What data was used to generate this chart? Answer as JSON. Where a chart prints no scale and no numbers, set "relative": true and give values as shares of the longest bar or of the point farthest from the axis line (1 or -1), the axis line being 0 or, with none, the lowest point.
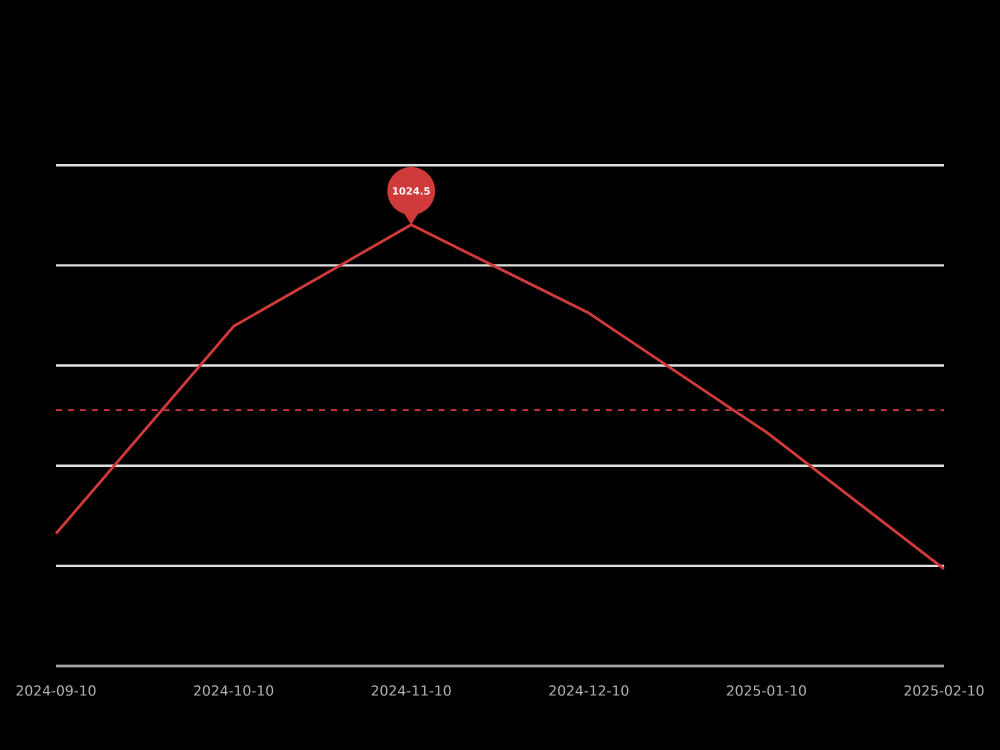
{
  "chart_data": {
    "type": "line",
    "relative": true,
    "categories": [
      "2024-09-10",
      "2024-10-10",
      "2024-11-10",
      "2024-12-10",
      "2025-01-10",
      "2025-02-10"
    ],
    "series": [
      {
        "color": "#d03a3a",
        "values": [
          0.3,
          0.77,
          1,
          0.8,
          0.53,
          0.22
        ]
      }
    ],
    "tick_labels": "x",
    "grid": "y",
    "marker": "none",
    "line_style": "solid",
    "ref_lines": [
      {
        "axis": "y",
        "value": 0.58,
        "color": "#d03a3a",
        "line_style": "dashed"
      }
    ],
    "annotations": [
      "1024.5"
    ]
  }
}
